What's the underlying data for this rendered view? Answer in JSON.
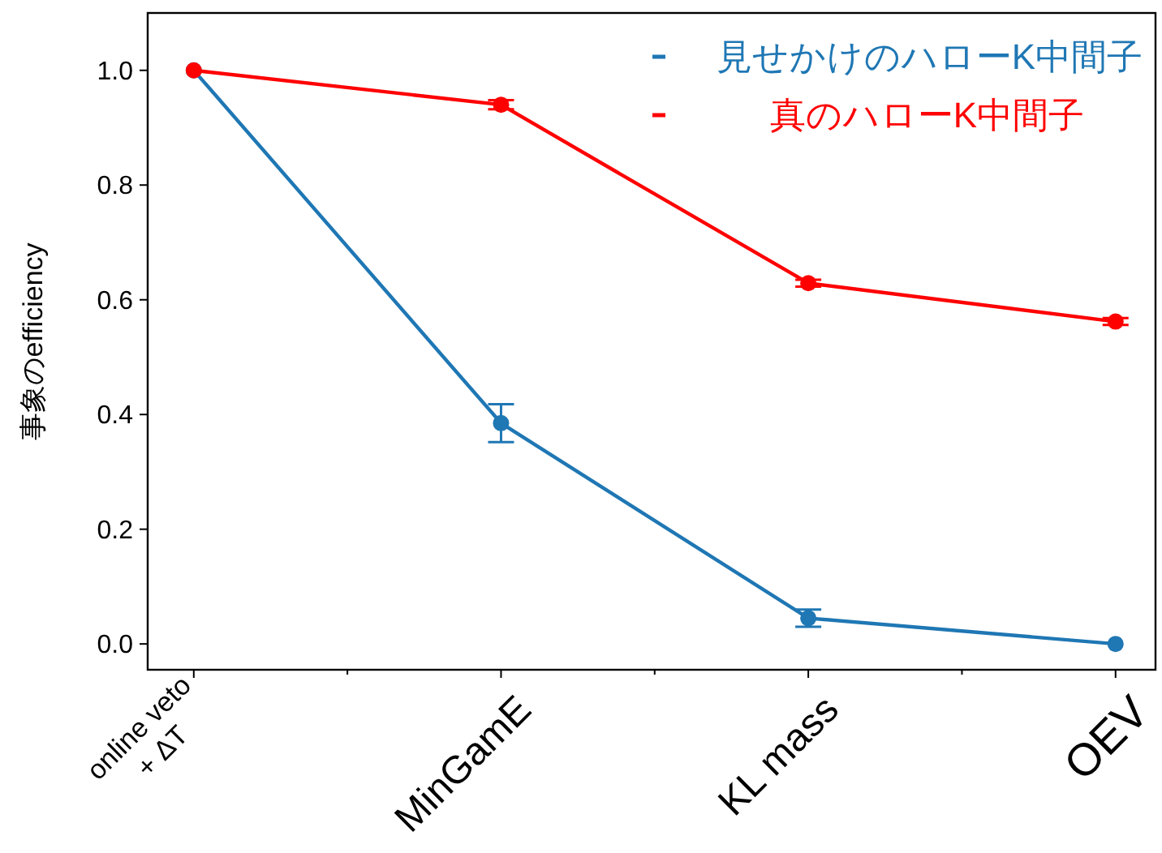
{
  "chart_data": {
    "type": "line",
    "ylabel": "事象のefficiency",
    "categories": [
      "online veto\n+ ΔT",
      "MinGamE",
      "KL mass",
      "OEV"
    ],
    "series": [
      {
        "name": "見せかけのハローK中間子",
        "color": "#1f77b4",
        "values": [
          1.0,
          0.385,
          0.045,
          0.0
        ],
        "errors": [
          null,
          0.033,
          0.015,
          null
        ]
      },
      {
        "name": "真のハローK中間子",
        "color": "#ff0000",
        "values": [
          1.0,
          0.94,
          0.629,
          0.562
        ],
        "errors": [
          null,
          0.008,
          0.006,
          0.006
        ]
      }
    ],
    "ylim": [
      -0.045,
      1.1
    ],
    "yticks": [
      {
        "value": 0,
        "label": "0.0"
      },
      {
        "value": 0.2,
        "label": "0.2"
      },
      {
        "value": 0.4,
        "label": "0.4"
      },
      {
        "value": 0.6,
        "label": "0.6"
      },
      {
        "value": 0.8,
        "label": "0.8"
      },
      {
        "value": 1,
        "label": "1.0"
      }
    ],
    "marker": "circle",
    "line_style": "solid",
    "legend": "top right",
    "grid": false
  }
}
